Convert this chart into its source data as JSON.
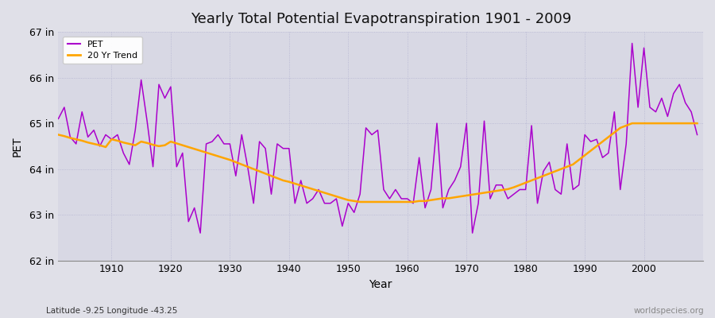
{
  "title": "Yearly Total Potential Evapotranspiration 1901 - 2009",
  "xlabel": "Year",
  "ylabel": "PET",
  "subtitle_left": "Latitude -9.25 Longitude -43.25",
  "subtitle_right": "worldspecies.org",
  "pet_color": "#AA00CC",
  "trend_color": "#FFA500",
  "fig_bg_color": "#E0E0E8",
  "plot_bg_color": "#D8D8E4",
  "ylim": [
    62,
    67
  ],
  "yticks": [
    62,
    63,
    64,
    65,
    66,
    67
  ],
  "ytick_labels": [
    "62 in",
    "63 in",
    "64 in",
    "65 in",
    "66 in",
    "67 in"
  ],
  "years": [
    1901,
    1902,
    1903,
    1904,
    1905,
    1906,
    1907,
    1908,
    1909,
    1910,
    1911,
    1912,
    1913,
    1914,
    1915,
    1916,
    1917,
    1918,
    1919,
    1920,
    1921,
    1922,
    1923,
    1924,
    1925,
    1926,
    1927,
    1928,
    1929,
    1930,
    1931,
    1932,
    1933,
    1934,
    1935,
    1936,
    1937,
    1938,
    1939,
    1940,
    1941,
    1942,
    1943,
    1944,
    1945,
    1946,
    1947,
    1948,
    1949,
    1950,
    1951,
    1952,
    1953,
    1954,
    1955,
    1956,
    1957,
    1958,
    1959,
    1960,
    1961,
    1962,
    1963,
    1964,
    1965,
    1966,
    1967,
    1968,
    1969,
    1970,
    1971,
    1972,
    1973,
    1974,
    1975,
    1976,
    1977,
    1978,
    1979,
    1980,
    1981,
    1982,
    1983,
    1984,
    1985,
    1986,
    1987,
    1988,
    1989,
    1990,
    1991,
    1992,
    1993,
    1994,
    1995,
    1996,
    1997,
    1998,
    1999,
    2000,
    2001,
    2002,
    2003,
    2004,
    2005,
    2006,
    2007,
    2008,
    2009
  ],
  "pet_values": [
    65.1,
    65.35,
    64.7,
    64.55,
    65.25,
    64.7,
    64.85,
    64.5,
    64.75,
    64.65,
    64.75,
    64.35,
    64.1,
    64.85,
    65.95,
    65.05,
    64.05,
    65.85,
    65.55,
    65.8,
    64.05,
    64.35,
    62.85,
    63.15,
    62.6,
    64.55,
    64.6,
    64.75,
    64.55,
    64.55,
    63.85,
    64.75,
    64.05,
    63.25,
    64.6,
    64.45,
    63.45,
    64.55,
    64.45,
    64.45,
    63.25,
    63.75,
    63.25,
    63.35,
    63.55,
    63.25,
    63.25,
    63.35,
    62.75,
    63.25,
    63.05,
    63.45,
    64.9,
    64.75,
    64.85,
    63.55,
    63.35,
    63.55,
    63.35,
    63.35,
    63.25,
    64.25,
    63.15,
    63.55,
    65.0,
    63.15,
    63.55,
    63.75,
    64.05,
    65.0,
    62.6,
    63.25,
    65.05,
    63.35,
    63.65,
    63.65,
    63.35,
    63.45,
    63.55,
    63.55,
    64.95,
    63.25,
    63.95,
    64.15,
    63.55,
    63.45,
    64.55,
    63.55,
    63.65,
    64.75,
    64.6,
    64.65,
    64.25,
    64.35,
    65.25,
    63.55,
    64.55,
    66.75,
    65.35,
    66.65,
    65.35,
    65.25,
    65.55,
    65.15,
    65.65,
    65.85,
    65.45,
    65.25,
    64.75
  ],
  "trend_values": [
    64.75,
    64.72,
    64.68,
    64.65,
    64.62,
    64.58,
    64.55,
    64.52,
    64.48,
    64.65,
    64.62,
    64.58,
    64.55,
    64.52,
    64.6,
    64.57,
    64.53,
    64.5,
    64.52,
    64.6,
    64.56,
    64.52,
    64.48,
    64.44,
    64.4,
    64.36,
    64.32,
    64.28,
    64.24,
    64.2,
    64.15,
    64.1,
    64.05,
    64.0,
    63.95,
    63.9,
    63.85,
    63.8,
    63.75,
    63.72,
    63.68,
    63.64,
    63.6,
    63.56,
    63.52,
    63.48,
    63.44,
    63.4,
    63.36,
    63.32,
    63.3,
    63.28,
    63.28,
    63.28,
    63.28,
    63.28,
    63.28,
    63.28,
    63.28,
    63.28,
    63.28,
    63.3,
    63.3,
    63.32,
    63.34,
    63.36,
    63.36,
    63.38,
    63.4,
    63.42,
    63.44,
    63.46,
    63.48,
    63.5,
    63.52,
    63.54,
    63.56,
    63.6,
    63.65,
    63.7,
    63.75,
    63.8,
    63.85,
    63.9,
    63.95,
    64.0,
    64.05,
    64.1,
    64.2,
    64.3,
    64.4,
    64.5,
    64.6,
    64.7,
    64.8,
    64.9,
    64.95,
    65.0,
    65.0,
    65.0,
    65.0,
    65.0,
    65.0,
    65.0,
    65.0,
    65.0,
    65.0,
    65.0,
    65.0
  ]
}
